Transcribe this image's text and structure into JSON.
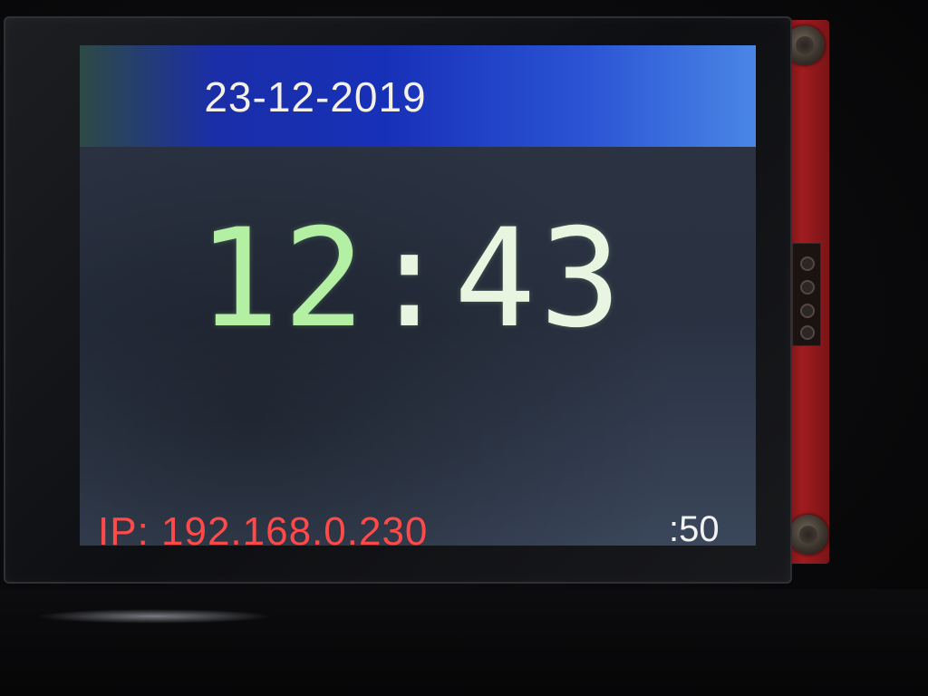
{
  "display": {
    "date": "23-12-2019",
    "time_hours": "12",
    "time_separator": ":",
    "time_minutes": "43",
    "ip": "IP: 192.168.0.230",
    "seconds": ":50"
  },
  "colors": {
    "date_bar": "#1730b8",
    "date_text": "#f4f0e4",
    "time_text": "#e8f5e0",
    "ip_text": "#ff4a4a",
    "seconds_text": "#f2f2f2",
    "screen_background": "#2c3444",
    "pcb": "#a01c1f"
  }
}
